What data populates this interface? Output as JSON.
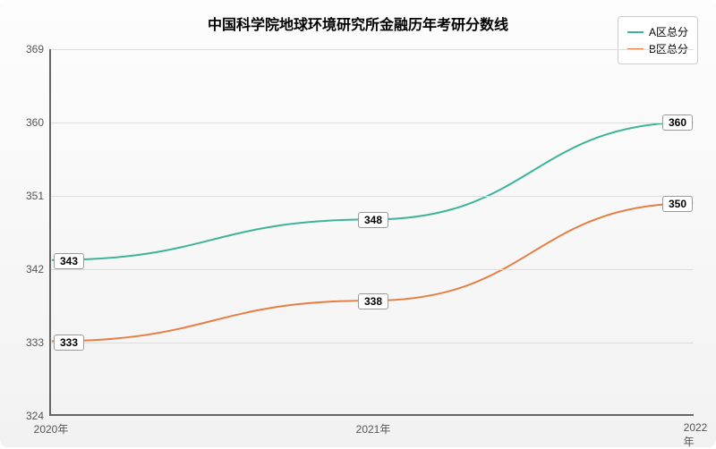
{
  "chart": {
    "type": "line",
    "title": "中国科学院地球环境研究所金融历年考研分数线",
    "title_fontsize": 16,
    "title_color": "#000000",
    "background_gradient_top": "#fdfdfd",
    "background_gradient_bottom": "#f2f2f2",
    "axis_color": "#666666",
    "grid_color": "#dddddd",
    "label_fontsize": 12,
    "label_color": "#555555",
    "ylim": [
      324,
      369
    ],
    "ytick_step": 9,
    "yticks": [
      324,
      333,
      342,
      351,
      360,
      369
    ],
    "categories": [
      "2020年",
      "2021年",
      "2022年"
    ],
    "legend": {
      "position": "top-right",
      "border_color": "#cccccc",
      "background_color": "#ffffff"
    },
    "series": [
      {
        "name": "A区总分",
        "color": "#3cb39a",
        "line_width": 2,
        "values": [
          343,
          348,
          360
        ]
      },
      {
        "name": "B区总分",
        "color": "#e67e44",
        "line_width": 2,
        "values": [
          333,
          338,
          350
        ]
      }
    ],
    "data_label_style": {
      "background": "#ffffff",
      "border_color": "#999999",
      "fontsize": 12,
      "font_weight": "bold"
    }
  }
}
